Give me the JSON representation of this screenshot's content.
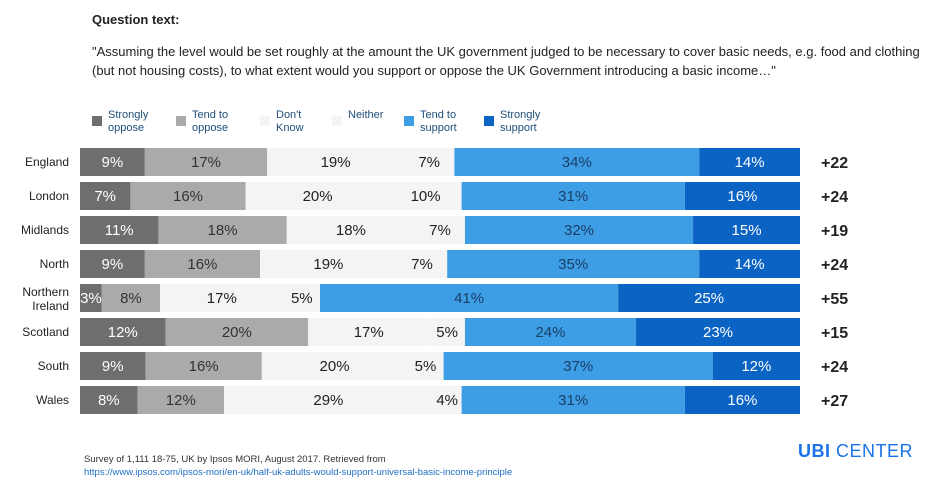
{
  "question": {
    "label": "Question text:",
    "text": "\"Assuming the level would be set roughly at the amount the UK government judged to be necessary to cover basic needs, e.g. food and clothing (but not housing costs), to what extent would you support or oppose the UK Government introducing a basic income…\""
  },
  "chart_data": {
    "type": "bar",
    "orientation": "horizontal",
    "stacked": true,
    "categories": [
      "England",
      "London",
      "Midlands",
      "North",
      "Northern Ireland",
      "Scotland",
      "South",
      "Wales"
    ],
    "series": [
      {
        "name": "Strongly oppose",
        "color": "#6e6e6e",
        "text_color": "#ffffff",
        "values": [
          9,
          7,
          11,
          9,
          3,
          12,
          9,
          8
        ]
      },
      {
        "name": "Tend to oppose",
        "color": "#aaaaaa",
        "text_color": "#333333",
        "values": [
          17,
          16,
          18,
          16,
          8,
          20,
          16,
          12
        ]
      },
      {
        "name": "Don't Know",
        "color": "#f4f4f4",
        "text_color": "#222222",
        "values": [
          19,
          20,
          18,
          19,
          17,
          17,
          20,
          29
        ]
      },
      {
        "name": "Neither",
        "color": "#f4f4f4",
        "text_color": "#222222",
        "values": [
          7,
          10,
          7,
          7,
          5,
          5,
          5,
          4
        ]
      },
      {
        "name": "Tend to support",
        "color": "#3d9ee6",
        "text_color": "#1a3f66",
        "values": [
          34,
          31,
          32,
          35,
          41,
          24,
          37,
          31
        ]
      },
      {
        "name": "Strongly support",
        "color": "#0b63c4",
        "text_color": "#ffffff",
        "values": [
          14,
          16,
          15,
          14,
          25,
          23,
          12,
          16
        ]
      }
    ],
    "net_labels": [
      "+22",
      "+24",
      "+19",
      "+24",
      "+55",
      "+15",
      "+24",
      "+27"
    ],
    "legend": {
      "position": "top-left",
      "entries": [
        {
          "line1": "Strongly",
          "line2": "oppose"
        },
        {
          "line1": "Tend to",
          "line2": "oppose"
        },
        {
          "line1": "Don't",
          "line2": "Know"
        },
        {
          "line1": "Neither",
          "line2": ""
        },
        {
          "line1": "Tend to",
          "line2": "support"
        },
        {
          "line1": "Strongly",
          "line2": "support"
        }
      ]
    },
    "title": "",
    "xlabel": "",
    "ylabel": "",
    "grid": false
  },
  "footer": {
    "source": "Survey of 1,111 18-75, UK by Ipsos MORI, August 2017. Retrieved from",
    "url": "https://www.ipsos.com/ipsos-mori/en-uk/half-uk-adults-would-support-universal-basic-income-principle"
  },
  "logo": {
    "ubi": "UBI",
    "center": "CENTER"
  }
}
